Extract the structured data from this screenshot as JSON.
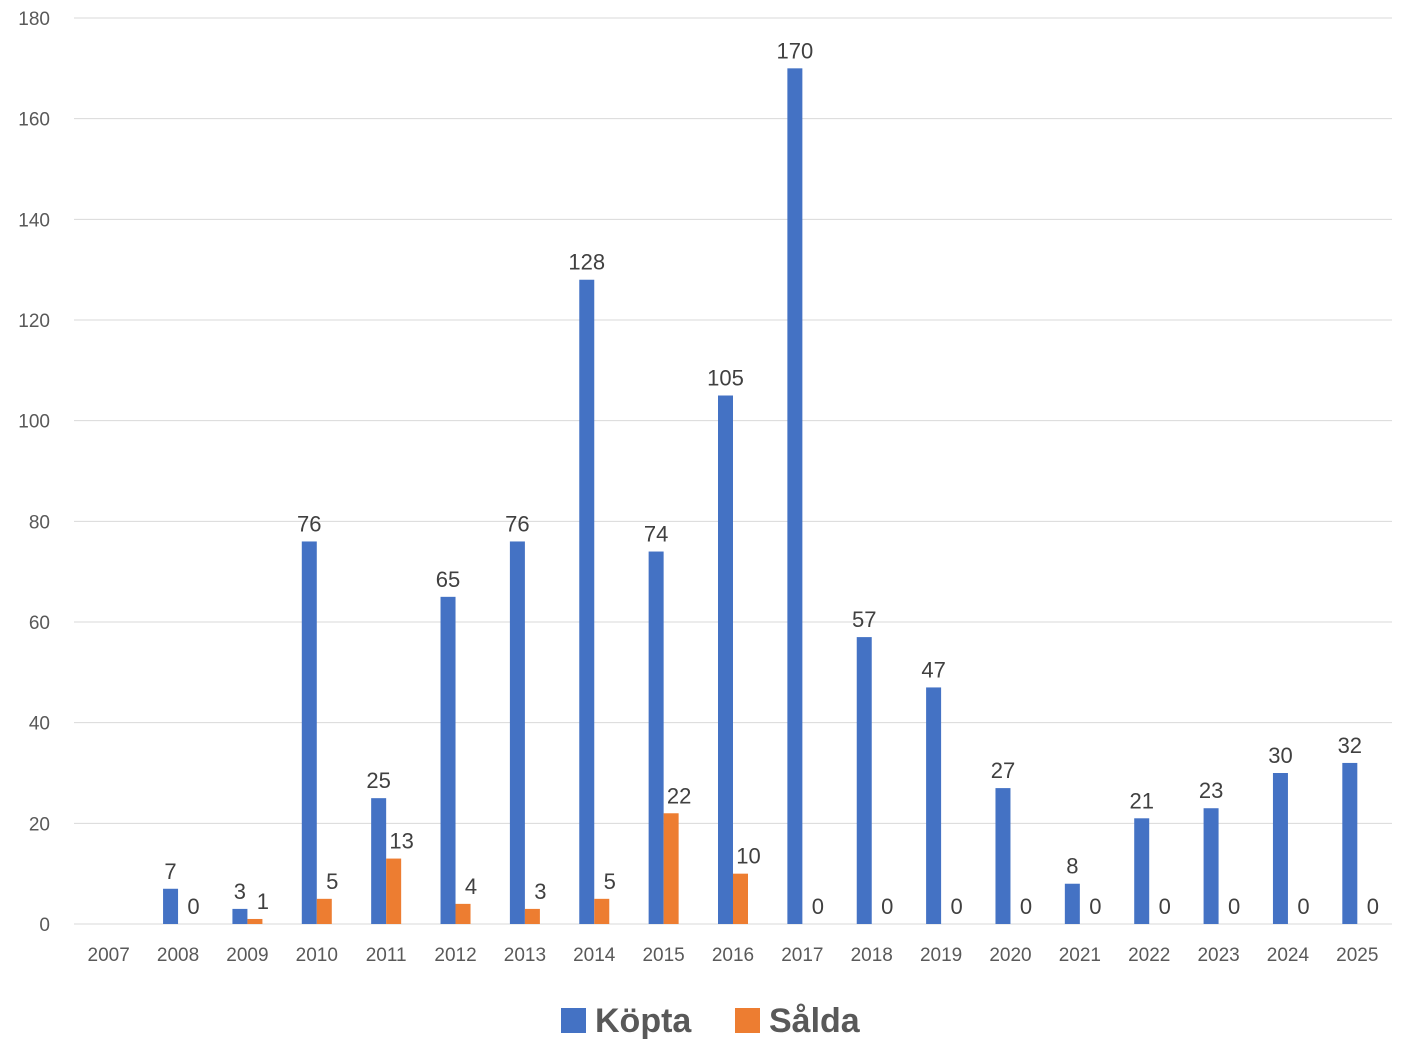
{
  "chart_data": {
    "type": "bar",
    "categories": [
      "2007",
      "2008",
      "2009",
      "2010",
      "2011",
      "2012",
      "2013",
      "2014",
      "2015",
      "2016",
      "2017",
      "2018",
      "2019",
      "2020",
      "2021",
      "2022",
      "2023",
      "2024",
      "2025"
    ],
    "series": [
      {
        "name": "Köpta",
        "color": "#4472c4",
        "values": [
          null,
          7,
          3,
          76,
          25,
          65,
          76,
          128,
          74,
          105,
          170,
          57,
          47,
          27,
          8,
          21,
          23,
          30,
          32
        ]
      },
      {
        "name": "Sålda",
        "color": "#ed7d31",
        "values": [
          null,
          0,
          1,
          5,
          13,
          4,
          3,
          5,
          22,
          10,
          0,
          0,
          0,
          0,
          0,
          0,
          0,
          0,
          0
        ]
      }
    ],
    "ylim": [
      0,
      180
    ],
    "yticks": [
      0,
      20,
      40,
      60,
      80,
      100,
      120,
      140,
      160,
      180
    ],
    "grid": true,
    "legend_position": "bottom",
    "data_labels": true,
    "title": "",
    "xlabel": "",
    "ylabel": ""
  }
}
